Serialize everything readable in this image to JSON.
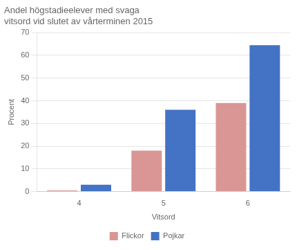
{
  "chart_data": {
    "type": "bar",
    "title": "Andel högstadieelever med svaga\nvitsord vid slutet av vårterminen 2015",
    "ylabel": "Procent",
    "xlabel": "Vitsord",
    "categories": [
      "4",
      "5",
      "6"
    ],
    "series": [
      {
        "name": "Flickor",
        "color": "#d99694",
        "values": [
          0.5,
          18,
          39
        ]
      },
      {
        "name": "Pojkar",
        "color": "#4472c4",
        "values": [
          3,
          36,
          64.5
        ]
      }
    ],
    "ylim": [
      0,
      70
    ],
    "yticks": [
      0,
      10,
      20,
      30,
      40,
      50,
      60,
      70
    ],
    "grid": true,
    "legend": "bottom"
  }
}
